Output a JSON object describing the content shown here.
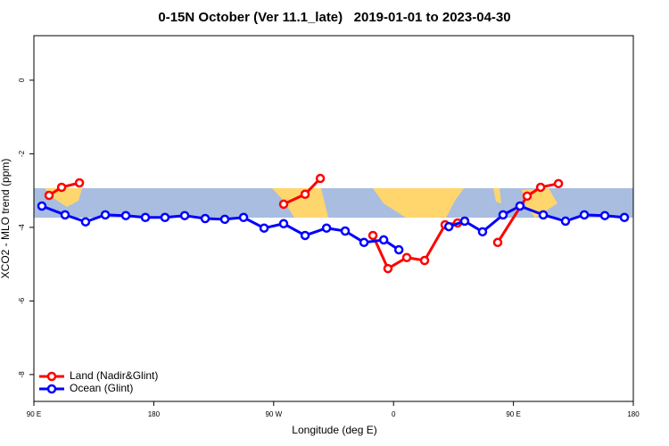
{
  "chart_data": {
    "type": "line",
    "title": "0-15N October (Ver 11.1_late)   2019-01-01 to 2023-04-30",
    "xlabel": "Longitude (deg E)",
    "ylabel": "XCO2 - MLO trend (ppm)",
    "xlim": [
      90,
      540
    ],
    "ylim": [
      -8.73,
      1.21
    ],
    "xticks": [
      {
        "value": 90,
        "label": "90 E"
      },
      180,
      {
        "value": 270,
        "label": "90 W"
      },
      {
        "value": 360,
        "label": "0"
      },
      {
        "value": 450,
        "label": "90 E"
      },
      {
        "value": 540,
        "label": "180"
      }
    ],
    "yticks": [
      0,
      -2,
      -4,
      -6,
      -8
    ],
    "legend": "bottom-left",
    "series": [
      {
        "name": "Land (Nadir&Glint)",
        "color": "#ff0000",
        "x": [
          101.4,
          110.8,
          124.2,
          null,
          277.5,
          293.6,
          305.0,
          null,
          344.5,
          355.8,
          369.9,
          383.3,
          398.7,
          408.1,
          null,
          438.2,
          460.3,
          470.4,
          483.8
        ],
        "values": [
          -3.13,
          -2.91,
          -2.79,
          null,
          -3.37,
          -3.1,
          -2.67,
          null,
          -4.22,
          -5.12,
          -4.82,
          -4.9,
          -3.93,
          -3.88,
          null,
          -4.41,
          -3.15,
          -2.91,
          -2.81
        ]
      },
      {
        "name": "Ocean (Glint)",
        "color": "#0000ff",
        "x": [
          96.0,
          113.4,
          128.8,
          143.6,
          159.0,
          173.7,
          188.4,
          203.2,
          218.6,
          233.3,
          247.4,
          262.8,
          277.5,
          293.6,
          309.7,
          323.7,
          337.8,
          352.6,
          364.0,
          null,
          401.5,
          413.4,
          426.8,
          442.2,
          454.9,
          472.4,
          489.1,
          503.2,
          518.6,
          533.3
        ],
        "values": [
          -3.42,
          -3.66,
          -3.85,
          -3.66,
          -3.68,
          -3.73,
          -3.73,
          -3.68,
          -3.76,
          -3.78,
          -3.73,
          -4.02,
          -3.9,
          -4.22,
          -4.02,
          -4.1,
          -4.41,
          -4.34,
          -4.61,
          null,
          -3.98,
          -3.83,
          -4.12,
          -3.66,
          -3.42,
          -3.66,
          -3.83,
          -3.66,
          -3.68,
          -3.73
        ]
      }
    ]
  }
}
